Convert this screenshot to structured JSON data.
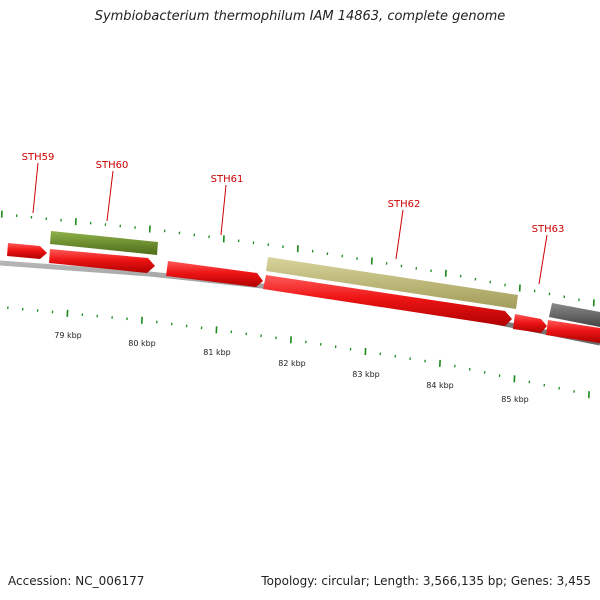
{
  "title": "Symbiobacterium thermophilum IAM 14863, complete genome",
  "footer": {
    "accession": "Accession: NC_006177",
    "summary": "Topology: circular; Length: 3,566,135 bp; Genes: 3,455"
  },
  "colors": {
    "forward_gene": "#e8141c",
    "reverse_gene_green": "#6b8f2a",
    "reverse_gene_khaki": "#bfbb7a",
    "reverse_gene_gray": "#666666",
    "backbone": "#8a8a8a",
    "tick": "#1a8a1a",
    "gene_label": "#cc0000",
    "scale_label": "#222222"
  },
  "gene_labels": [
    {
      "name": "STH59"
    },
    {
      "name": "STH60"
    },
    {
      "name": "STH61"
    },
    {
      "name": "STH62"
    },
    {
      "name": "STH63"
    }
  ],
  "scale_labels": [
    "79 kbp",
    "80 kbp",
    "81 kbp",
    "82 kbp",
    "83 kbp",
    "84 kbp",
    "85 kbp"
  ]
}
